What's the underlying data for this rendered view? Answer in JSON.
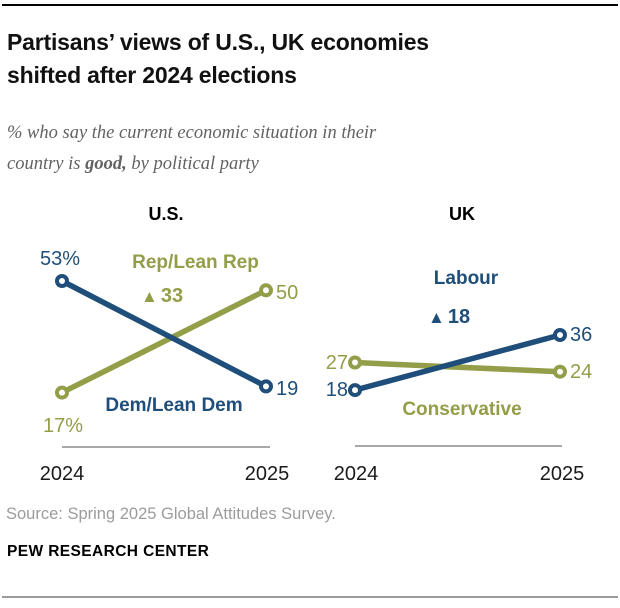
{
  "header": {
    "title_lines": [
      "Partisans’ views of U.S., UK economies",
      "shifted after 2024 elections"
    ],
    "subtitle_line1": "% who say the current economic situation in their",
    "subtitle_line2_prefix": "country is ",
    "subtitle_line2_bold": "good,",
    "subtitle_line2_suffix": " by political party"
  },
  "chart_data": [
    {
      "type": "line",
      "title": "U.S.",
      "x": [
        "2024",
        "2025"
      ],
      "legend": "inline-labels",
      "grid": false,
      "series": [
        {
          "name": "Rep/Lean Rep",
          "values": [
            17,
            50
          ],
          "value_labels": [
            "17%",
            "50"
          ],
          "change": "33",
          "color_key": "olive"
        },
        {
          "name": "Dem/Lean Dem",
          "values": [
            53,
            19
          ],
          "value_labels": [
            "53%",
            "19"
          ],
          "color_key": "navy"
        }
      ]
    },
    {
      "type": "line",
      "title": "UK",
      "x": [
        "2024",
        "2025"
      ],
      "legend": "inline-labels",
      "grid": false,
      "series": [
        {
          "name": "Conservative",
          "values": [
            27,
            24
          ],
          "value_labels": [
            "27",
            "24"
          ],
          "color_key": "olive"
        },
        {
          "name": "Labour",
          "values": [
            18,
            36
          ],
          "value_labels": [
            "18",
            "36"
          ],
          "change": "18",
          "color_key": "navy"
        }
      ]
    }
  ],
  "icons": {
    "increase": "▲"
  },
  "colors": {
    "navy": "#1e4e79",
    "olive": "#949d48",
    "axis": "#a8a8a8"
  },
  "footer": {
    "source": "Source: Spring 2025 Global Attitudes Survey.",
    "brand": "PEW RESEARCH CENTER"
  }
}
